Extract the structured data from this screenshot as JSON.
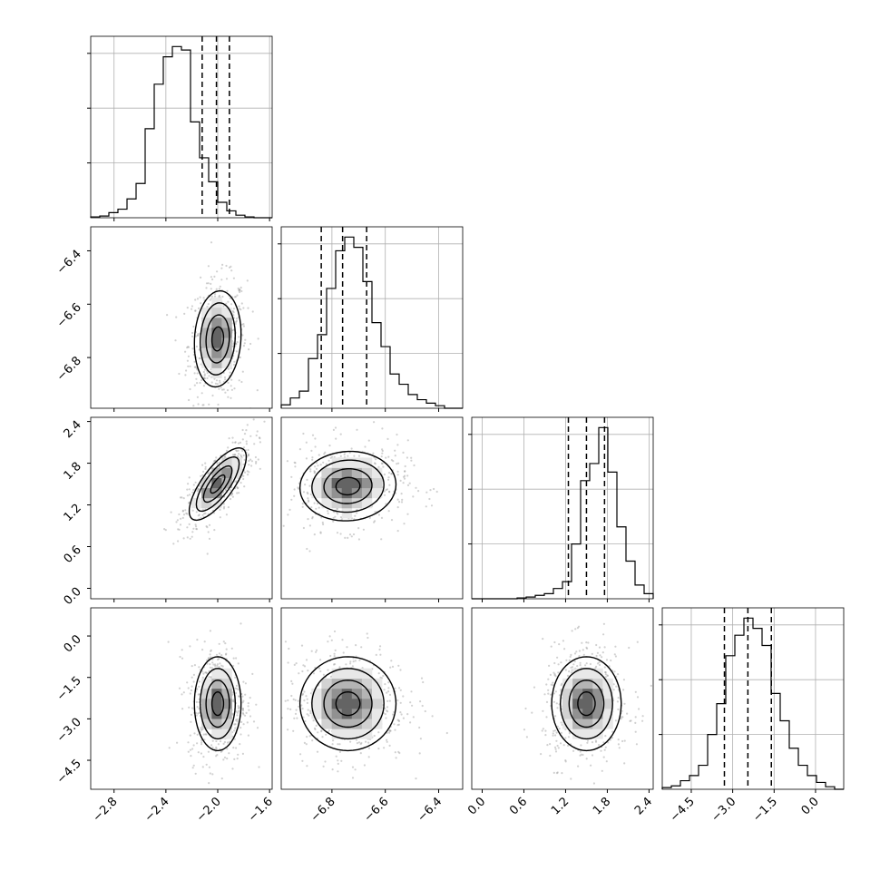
{
  "chart_data": {
    "type": "corner",
    "parameters": [
      {
        "ticks": [
          -2.8,
          -2.4,
          -2.0,
          -1.6
        ],
        "tick_labels": [
          "−2.8",
          "−2.4",
          "−2.0",
          "−1.6"
        ],
        "range": [
          -2.98,
          -1.58
        ]
      },
      {
        "ticks": [
          -6.8,
          -6.6,
          -6.4
        ],
        "tick_labels": [
          "−6.8",
          "−6.6",
          "−6.4"
        ],
        "range": [
          -6.99,
          -6.31
        ]
      },
      {
        "ticks": [
          0.0,
          0.6,
          1.2,
          1.8,
          2.4
        ],
        "tick_labels": [
          "0.0",
          "0.6",
          "1.2",
          "1.8",
          "2.4"
        ],
        "range": [
          -0.15,
          2.46
        ]
      },
      {
        "ticks": [
          -4.5,
          -3.0,
          -1.5,
          0.0
        ],
        "tick_labels": [
          "−4.5",
          "−3.0",
          "−1.5",
          "0.0"
        ],
        "range": [
          -5.55,
          1.02
        ]
      }
    ],
    "histograms": [
      {
        "param": 0,
        "values": [
          0.005,
          0.01,
          0.03,
          0.05,
          0.11,
          0.2,
          0.52,
          0.78,
          0.94,
          1.0,
          0.98,
          0.56,
          0.35,
          0.21,
          0.09,
          0.04,
          0.015,
          0.005,
          0.0,
          0.0
        ],
        "quantiles": [
          -2.12,
          -2.01,
          -1.91
        ]
      },
      {
        "param": 1,
        "values": [
          0.02,
          0.06,
          0.1,
          0.29,
          0.43,
          0.7,
          0.92,
          1.0,
          0.94,
          0.74,
          0.5,
          0.36,
          0.2,
          0.14,
          0.08,
          0.05,
          0.03,
          0.015,
          0.0,
          0.0
        ],
        "quantiles": [
          -6.84,
          -6.76,
          -6.67
        ]
      },
      {
        "param": 2,
        "values": [
          0.0,
          0.0,
          0.0,
          0.0,
          0.0,
          0.005,
          0.01,
          0.02,
          0.03,
          0.06,
          0.1,
          0.32,
          0.69,
          0.79,
          1.0,
          0.74,
          0.42,
          0.22,
          0.08,
          0.03
        ],
        "quantiles": [
          1.24,
          1.5,
          1.76
        ]
      },
      {
        "param": 3,
        "values": [
          0.01,
          0.02,
          0.05,
          0.08,
          0.14,
          0.32,
          0.5,
          0.78,
          0.9,
          1.0,
          0.94,
          0.84,
          0.56,
          0.4,
          0.24,
          0.14,
          0.08,
          0.04,
          0.015,
          0.0
        ],
        "quantiles": [
          -3.3,
          -2.45,
          -1.6
        ]
      }
    ],
    "pairs": [
      {
        "x": 0,
        "y": 1,
        "mean": [
          -2.0,
          -6.73
        ],
        "sd": [
          0.09,
          0.09
        ],
        "corr": 0.1
      },
      {
        "x": 0,
        "y": 2,
        "mean": [
          -2.0,
          1.5
        ],
        "sd": [
          0.11,
          0.26
        ],
        "corr": 0.75
      },
      {
        "x": 1,
        "y": 2,
        "mean": [
          -6.74,
          1.47
        ],
        "sd": [
          0.09,
          0.25
        ],
        "corr": 0.05
      },
      {
        "x": 0,
        "y": 3,
        "mean": [
          -2.0,
          -2.45
        ],
        "sd": [
          0.09,
          0.85
        ],
        "corr": 0.0
      },
      {
        "x": 1,
        "y": 3,
        "mean": [
          -6.74,
          -2.45
        ],
        "sd": [
          0.09,
          0.85
        ],
        "corr": 0.0
      },
      {
        "x": 2,
        "y": 3,
        "mean": [
          1.5,
          -2.45
        ],
        "sd": [
          0.25,
          0.85
        ],
        "corr": 0.0
      }
    ],
    "contour_levels": [
      0.5,
      1.0,
      1.5,
      2.0
    ],
    "grid": true
  }
}
